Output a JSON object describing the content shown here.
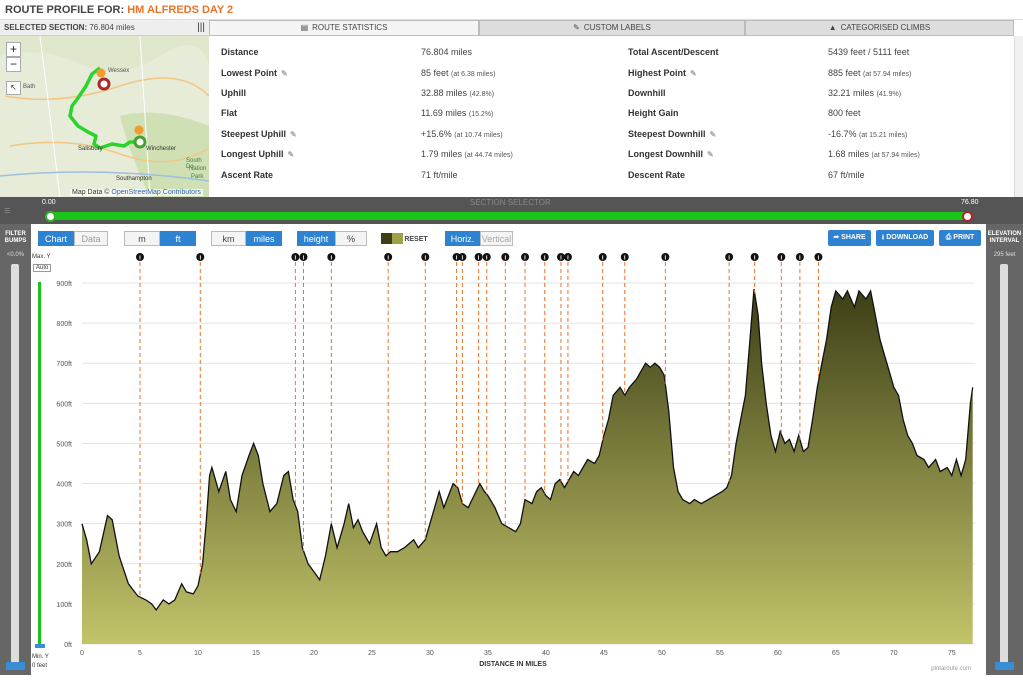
{
  "header": {
    "prefix": "ROUTE PROFILE FOR:",
    "route_name": "HM ALFREDS DAY 2"
  },
  "map": {
    "section_label": "SELECTED SECTION:",
    "section_value": "76.804 miles",
    "zoom_in": "+",
    "zoom_out": "−",
    "attribution": "Map Data ©",
    "attribution_link": "OpenStreetMap Contributors",
    "places": [
      "Salisbury",
      "Winchester",
      "Southampton",
      "Wessex",
      "Bath",
      "South Do",
      "Nation",
      "Park"
    ]
  },
  "tabs": [
    {
      "label": "ROUTE STATISTICS",
      "icon": "table-icon",
      "active": true
    },
    {
      "label": "CUSTOM LABELS",
      "icon": "pencil-icon",
      "active": false
    },
    {
      "label": "CATEGORISED CLIMBS",
      "icon": "mountain-icon",
      "active": false
    }
  ],
  "stats": {
    "left": [
      {
        "label": "Distance",
        "value": "76.804 miles",
        "note": "",
        "editable": false
      },
      {
        "label": "Lowest Point",
        "value": "85 feet",
        "note": "(at 6.38 miles)",
        "editable": true
      },
      {
        "label": "Uphill",
        "value": "32.88 miles",
        "note": "(42.8%)",
        "editable": false
      },
      {
        "label": "Flat",
        "value": "11.69 miles",
        "note": "(15.2%)",
        "editable": false
      },
      {
        "label": "Steepest Uphill",
        "value": "+15.6%",
        "note": "(at 10.74 miles)",
        "editable": true
      },
      {
        "label": "Longest Uphill",
        "value": "1.79 miles",
        "note": "(at 44.74 miles)",
        "editable": true
      },
      {
        "label": "Ascent Rate",
        "value": "71 ft/mile",
        "note": "",
        "editable": false
      }
    ],
    "right": [
      {
        "label": "Total Ascent/Descent",
        "value": "5439 feet / 5111 feet",
        "note": "",
        "editable": false
      },
      {
        "label": "Highest Point",
        "value": "885 feet",
        "note": "(at 57.94 miles)",
        "editable": true
      },
      {
        "label": "Downhill",
        "value": "32.21 miles",
        "note": "(41.9%)",
        "editable": false
      },
      {
        "label": "Height Gain",
        "value": "800 feet",
        "note": "",
        "editable": false
      },
      {
        "label": "Steepest Downhill",
        "value": "-16.7%",
        "note": "(at 15.21 miles)",
        "editable": true
      },
      {
        "label": "Longest Downhill",
        "value": "1.68 miles",
        "note": "(at 57.94 miles)",
        "editable": true
      },
      {
        "label": "Descent Rate",
        "value": "67 ft/mile",
        "note": "",
        "editable": false
      }
    ]
  },
  "selector": {
    "label": "SECTION SELECTOR",
    "start": "0.00",
    "end": "76.80",
    "range": [
      0,
      76.8
    ]
  },
  "left_panel": {
    "title": "FILTER BUMPS",
    "value": "<0.0%"
  },
  "right_panel": {
    "title": "ELEVATION INTERVAL",
    "value": "295 feet"
  },
  "toolbar": {
    "chart": "Chart",
    "data": "Data",
    "m": "m",
    "ft": "ft",
    "km": "km",
    "miles": "miles",
    "height": "height",
    "percent": "%",
    "reset": "RESET",
    "horiz": "Horiz.",
    "vertical": "Vertical",
    "share": "SHARE",
    "download": "DOWNLOAD",
    "print": "PRINT"
  },
  "y_scale": {
    "max_label": "Max. Y",
    "auto": "Auto",
    "min_label": "Min. Y",
    "min_value": "0 feet"
  },
  "colors": {
    "accent": "#2d82d1",
    "track": "#19c519",
    "fill_top": "#3d3f16",
    "fill_bottom": "#c2c46a",
    "marker": "#e8742a"
  },
  "chart_data": {
    "type": "area",
    "xlabel": "DISTANCE IN MILES",
    "ylabel": "",
    "xlim": [
      0,
      77
    ],
    "ylim": [
      0,
      900
    ],
    "x_ticks": [
      0,
      5,
      10,
      15,
      20,
      25,
      30,
      35,
      40,
      45,
      50,
      55,
      60,
      65,
      70,
      75
    ],
    "y_ticks": [
      "0ft",
      "100ft",
      "200ft",
      "300ft",
      "400ft",
      "500ft",
      "600ft",
      "700ft",
      "800ft",
      "900ft"
    ],
    "watermark": "plotaroute.com",
    "info_marker_symbol": "i",
    "info_markers_miles": [
      5,
      10.2,
      18.4,
      19.1,
      21.5,
      26.4,
      29.6,
      32.3,
      32.8,
      34.2,
      34.9,
      36.5,
      38.2,
      39.9,
      41.3,
      41.9,
      44.9,
      46.8,
      50.3,
      55.8,
      58.0,
      60.3,
      61.9,
      63.5
    ],
    "profile": [
      [
        0,
        300
      ],
      [
        0.4,
        260
      ],
      [
        0.8,
        200
      ],
      [
        1.5,
        230
      ],
      [
        2.2,
        320
      ],
      [
        2.6,
        310
      ],
      [
        3.2,
        220
      ],
      [
        4.0,
        150
      ],
      [
        4.8,
        120
      ],
      [
        5.5,
        110
      ],
      [
        6.0,
        100
      ],
      [
        6.4,
        85
      ],
      [
        7.0,
        110
      ],
      [
        7.5,
        100
      ],
      [
        8.0,
        110
      ],
      [
        8.6,
        150
      ],
      [
        9.0,
        130
      ],
      [
        9.6,
        125
      ],
      [
        10.0,
        145
      ],
      [
        10.4,
        200
      ],
      [
        10.7,
        300
      ],
      [
        11.0,
        420
      ],
      [
        11.2,
        440
      ],
      [
        11.8,
        380
      ],
      [
        12.4,
        430
      ],
      [
        12.8,
        360
      ],
      [
        13.3,
        330
      ],
      [
        13.8,
        420
      ],
      [
        14.4,
        470
      ],
      [
        14.8,
        500
      ],
      [
        15.2,
        470
      ],
      [
        15.6,
        400
      ],
      [
        16.2,
        330
      ],
      [
        16.8,
        350
      ],
      [
        17.4,
        420
      ],
      [
        17.8,
        430
      ],
      [
        18.2,
        360
      ],
      [
        18.6,
        330
      ],
      [
        19.0,
        240
      ],
      [
        19.5,
        200
      ],
      [
        20.0,
        180
      ],
      [
        20.5,
        160
      ],
      [
        21.0,
        220
      ],
      [
        21.5,
        300
      ],
      [
        22.0,
        240
      ],
      [
        22.6,
        300
      ],
      [
        23.0,
        350
      ],
      [
        23.4,
        290
      ],
      [
        23.8,
        310
      ],
      [
        24.2,
        280
      ],
      [
        24.8,
        250
      ],
      [
        25.4,
        300
      ],
      [
        25.8,
        240
      ],
      [
        26.2,
        220
      ],
      [
        26.6,
        230
      ],
      [
        27.2,
        230
      ],
      [
        27.8,
        240
      ],
      [
        28.2,
        250
      ],
      [
        28.6,
        260
      ],
      [
        29.0,
        240
      ],
      [
        29.6,
        260
      ],
      [
        30.0,
        300
      ],
      [
        30.4,
        340
      ],
      [
        30.8,
        380
      ],
      [
        31.2,
        340
      ],
      [
        31.6,
        370
      ],
      [
        32.0,
        400
      ],
      [
        32.4,
        390
      ],
      [
        32.8,
        350
      ],
      [
        33.3,
        340
      ],
      [
        33.8,
        370
      ],
      [
        34.3,
        400
      ],
      [
        34.7,
        380
      ],
      [
        35.0,
        370
      ],
      [
        35.6,
        340
      ],
      [
        36.2,
        300
      ],
      [
        36.8,
        290
      ],
      [
        37.4,
        280
      ],
      [
        37.8,
        300
      ],
      [
        38.2,
        360
      ],
      [
        38.8,
        350
      ],
      [
        39.2,
        380
      ],
      [
        39.6,
        390
      ],
      [
        40.0,
        370
      ],
      [
        40.4,
        360
      ],
      [
        40.8,
        400
      ],
      [
        41.2,
        410
      ],
      [
        41.6,
        390
      ],
      [
        42.0,
        410
      ],
      [
        42.4,
        430
      ],
      [
        42.8,
        420
      ],
      [
        43.2,
        440
      ],
      [
        43.6,
        460
      ],
      [
        44.2,
        450
      ],
      [
        44.6,
        470
      ],
      [
        45.0,
        520
      ],
      [
        45.4,
        560
      ],
      [
        45.8,
        620
      ],
      [
        46.4,
        640
      ],
      [
        46.8,
        620
      ],
      [
        47.2,
        640
      ],
      [
        47.8,
        660
      ],
      [
        48.2,
        680
      ],
      [
        48.6,
        700
      ],
      [
        49.0,
        690
      ],
      [
        49.4,
        700
      ],
      [
        49.8,
        690
      ],
      [
        50.2,
        670
      ],
      [
        50.6,
        580
      ],
      [
        51.0,
        440
      ],
      [
        51.4,
        380
      ],
      [
        51.8,
        360
      ],
      [
        52.4,
        350
      ],
      [
        52.8,
        360
      ],
      [
        53.4,
        350
      ],
      [
        54.0,
        360
      ],
      [
        54.6,
        370
      ],
      [
        55.2,
        380
      ],
      [
        55.6,
        390
      ],
      [
        56.0,
        420
      ],
      [
        56.4,
        500
      ],
      [
        56.8,
        560
      ],
      [
        57.2,
        620
      ],
      [
        57.6,
        760
      ],
      [
        57.94,
        885
      ],
      [
        58.3,
        820
      ],
      [
        58.6,
        700
      ],
      [
        59.0,
        600
      ],
      [
        59.4,
        520
      ],
      [
        59.8,
        480
      ],
      [
        60.2,
        530
      ],
      [
        60.6,
        500
      ],
      [
        61.0,
        510
      ],
      [
        61.4,
        480
      ],
      [
        61.8,
        520
      ],
      [
        62.2,
        480
      ],
      [
        62.6,
        490
      ],
      [
        63.0,
        560
      ],
      [
        63.4,
        640
      ],
      [
        63.8,
        700
      ],
      [
        64.2,
        760
      ],
      [
        64.6,
        840
      ],
      [
        65.0,
        880
      ],
      [
        65.6,
        860
      ],
      [
        66.0,
        880
      ],
      [
        66.6,
        840
      ],
      [
        67.0,
        880
      ],
      [
        67.6,
        860
      ],
      [
        68.0,
        880
      ],
      [
        68.4,
        820
      ],
      [
        68.8,
        760
      ],
      [
        69.2,
        720
      ],
      [
        69.6,
        680
      ],
      [
        70.0,
        640
      ],
      [
        70.4,
        620
      ],
      [
        70.8,
        560
      ],
      [
        71.2,
        520
      ],
      [
        71.6,
        500
      ],
      [
        72.0,
        470
      ],
      [
        72.6,
        460
      ],
      [
        73.0,
        440
      ],
      [
        73.6,
        460
      ],
      [
        74.0,
        430
      ],
      [
        74.6,
        440
      ],
      [
        75.0,
        420
      ],
      [
        75.4,
        460
      ],
      [
        75.8,
        420
      ],
      [
        76.2,
        460
      ],
      [
        76.6,
        600
      ],
      [
        76.804,
        640
      ]
    ]
  }
}
